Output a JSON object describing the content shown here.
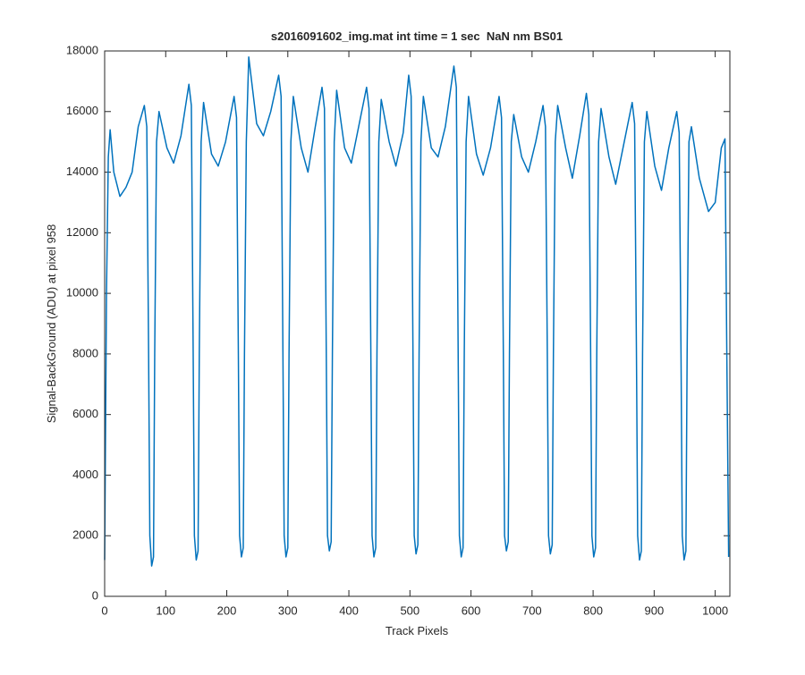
{
  "chart_data": {
    "type": "line",
    "title": "s2016091602_img.mat int time = 1 sec  NaN nm BS01",
    "xlabel": "Track Pixels",
    "ylabel": "Signal-BackGround (ADU) at pixel 958",
    "color": "#0072bd",
    "xlim": [
      0,
      1024
    ],
    "ylim": [
      0,
      18000
    ],
    "xticks": [
      0,
      100,
      200,
      300,
      400,
      500,
      600,
      700,
      800,
      900,
      1000
    ],
    "yticks": [
      0,
      2000,
      4000,
      6000,
      8000,
      10000,
      12000,
      14000,
      16000,
      18000
    ],
    "x": [
      0,
      3,
      6,
      9,
      15,
      25,
      35,
      45,
      55,
      65,
      69,
      72,
      74,
      77,
      80,
      82,
      85,
      89,
      102,
      113,
      125,
      138,
      142,
      145,
      147,
      150,
      153,
      155,
      158,
      162,
      175,
      186,
      198,
      212,
      216,
      219,
      221,
      224,
      227,
      229,
      232,
      236,
      249,
      260,
      272,
      285,
      289,
      292,
      294,
      297,
      300,
      302,
      305,
      309,
      322,
      333,
      345,
      356,
      360,
      363,
      365,
      368,
      371,
      373,
      376,
      380,
      393,
      404,
      416,
      429,
      433,
      436,
      438,
      441,
      444,
      446,
      449,
      453,
      466,
      477,
      489,
      498,
      502,
      505,
      507,
      510,
      513,
      515,
      518,
      522,
      535,
      546,
      558,
      572,
      576,
      579,
      581,
      584,
      587,
      589,
      592,
      596,
      609,
      620,
      632,
      646,
      650,
      653,
      655,
      658,
      661,
      663,
      666,
      670,
      683,
      694,
      706,
      718,
      722,
      725,
      727,
      730,
      733,
      735,
      738,
      742,
      755,
      766,
      778,
      789,
      793,
      796,
      798,
      801,
      804,
      806,
      809,
      813,
      826,
      837,
      849,
      864,
      868,
      871,
      873,
      876,
      879,
      881,
      884,
      888,
      901,
      912,
      924,
      937,
      941,
      944,
      946,
      949,
      952,
      954,
      957,
      961,
      974,
      989,
      1000,
      1010,
      1016,
      1019,
      1022
    ],
    "values": [
      1200,
      10000,
      14500,
      15400,
      14000,
      13200,
      13500,
      14000,
      15500,
      16200,
      15500,
      8000,
      2000,
      1000,
      1300,
      8000,
      15000,
      16000,
      14800,
      14300,
      15200,
      16900,
      16200,
      8000,
      2000,
      1200,
      1500,
      8000,
      15000,
      16300,
      14600,
      14200,
      15000,
      16500,
      15800,
      8000,
      2000,
      1300,
      1600,
      8000,
      15000,
      17800,
      15600,
      15200,
      16000,
      17200,
      16500,
      8000,
      2000,
      1300,
      1600,
      8000,
      15000,
      16500,
      14800,
      14000,
      15500,
      16800,
      16100,
      8000,
      2000,
      1500,
      1800,
      8000,
      15000,
      16700,
      14800,
      14300,
      15500,
      16800,
      16100,
      8000,
      2000,
      1300,
      1600,
      8000,
      15000,
      16400,
      15000,
      14200,
      15300,
      17200,
      16500,
      8000,
      2000,
      1400,
      1700,
      8000,
      15000,
      16500,
      14800,
      14500,
      15500,
      17500,
      16800,
      8000,
      2000,
      1300,
      1600,
      8000,
      15000,
      16500,
      14600,
      13900,
      14800,
      16500,
      15800,
      8000,
      2000,
      1500,
      1800,
      8000,
      15000,
      15900,
      14500,
      14000,
      15000,
      16200,
      15500,
      8000,
      2000,
      1400,
      1700,
      8000,
      15000,
      16200,
      14800,
      13800,
      15200,
      16600,
      15900,
      8000,
      2000,
      1300,
      1600,
      8000,
      15000,
      16100,
      14500,
      13600,
      14800,
      16300,
      15600,
      8000,
      2000,
      1200,
      1500,
      8000,
      15000,
      16000,
      14200,
      13400,
      14800,
      16000,
      15300,
      8000,
      2000,
      1200,
      1500,
      8000,
      15000,
      15500,
      13800,
      12700,
      13000,
      14800,
      15100,
      8000,
      1300
    ]
  }
}
